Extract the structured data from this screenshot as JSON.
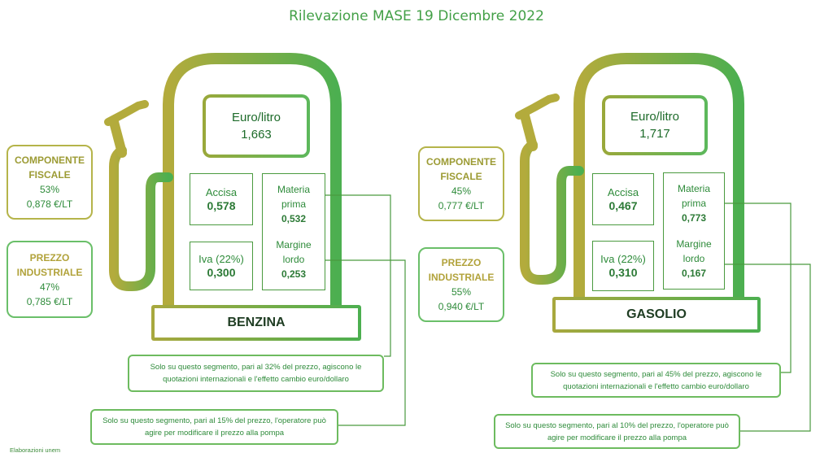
{
  "title": "Rilevazione MASE 19 Dicembre 2022",
  "credit": "Elaborazioni unem",
  "pumps": [
    {
      "fuel": "BENZINA",
      "price_label": "Euro/litro",
      "price": "1,663",
      "accisa_label": "Accisa",
      "accisa": "0,578",
      "iva_label": "Iva (22%)",
      "iva": "0,300",
      "materia_label_1": "Materia",
      "materia_label_2": "prima",
      "materia": "0,532",
      "margine_label_1": "Margine",
      "margine_label_2": "lordo",
      "margine": "0,253",
      "fiscale_label_1": "COMPONENTE",
      "fiscale_label_2": "FISCALE",
      "fiscale_pct": "53%",
      "fiscale_amt": "0,878 €/LT",
      "industriale_label_1": "PREZZO",
      "industriale_label_2": "INDUSTRIALE",
      "industriale_pct": "47%",
      "industriale_amt": "0,785 €/LT",
      "note1_line1": "Solo su questo segmento, pari al 32% del prezzo, agiscono le",
      "note1_line2": "quotazioni internazionali e l'effetto cambio euro/dollaro",
      "note2_line1": "Solo su questo segmento, pari al 15% del prezzo, l'operatore può",
      "note2_line2": "agire per modificare il prezzo alla pompa"
    },
    {
      "fuel": "GASOLIO",
      "price_label": "Euro/litro",
      "price": "1,717",
      "accisa_label": "Accisa",
      "accisa": "0,467",
      "iva_label": "Iva (22%)",
      "iva": "0,310",
      "materia_label_1": "Materia",
      "materia_label_2": "prima",
      "materia": "0,773",
      "margine_label_1": "Margine",
      "margine_label_2": "lordo",
      "margine": "0,167",
      "fiscale_label_1": "COMPONENTE",
      "fiscale_label_2": "FISCALE",
      "fiscale_pct": "45%",
      "fiscale_amt": "0,777 €/LT",
      "industriale_label_1": "PREZZO",
      "industriale_label_2": "INDUSTRIALE",
      "industriale_pct": "55%",
      "industriale_amt": "0,940 €/LT",
      "note1_line1": "Solo su questo segmento, pari al 45% del prezzo, agiscono le",
      "note1_line2": "quotazioni internazionali e l'effetto cambio euro/dollaro",
      "note2_line1": "Solo su questo segmento, pari al 10% del prezzo, l'operatore può",
      "note2_line2": "agire per modificare il prezzo alla pompa"
    }
  ]
}
